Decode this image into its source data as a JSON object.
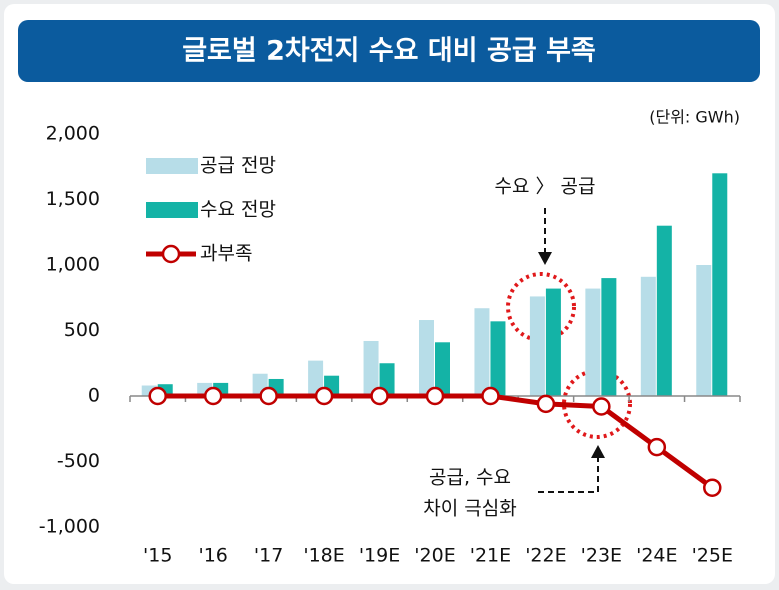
{
  "chart_data": {
    "type": "bar",
    "title": "글로벌 2차전지 수요 대비 공급 부족",
    "unit_label": "(단위: GWh)",
    "categories": [
      "'15",
      "'16",
      "'17",
      "'18E",
      "'19E",
      "'20E",
      "'21E",
      "'22E",
      "'23E",
      "'24E",
      "'25E"
    ],
    "series": [
      {
        "name": "공급 전망",
        "color": "#b7dde8",
        "type": "bar",
        "values": [
          80,
          100,
          170,
          270,
          420,
          580,
          670,
          760,
          820,
          910,
          1000
        ]
      },
      {
        "name": "수요 전망",
        "color": "#14b3a6",
        "type": "bar",
        "values": [
          90,
          100,
          130,
          155,
          250,
          410,
          570,
          820,
          900,
          1300,
          1700
        ]
      },
      {
        "name": "과부족",
        "color": "#c00000",
        "type": "line",
        "values": [
          0,
          0,
          0,
          0,
          0,
          0,
          0,
          -60,
          -80,
          -390,
          -700
        ]
      }
    ],
    "ylim": [
      -1000,
      2000
    ],
    "yticks": [
      {
        "value": -1000,
        "label": "-1,000"
      },
      -500,
      0,
      500,
      {
        "value": 1000,
        "label": "1,000"
      },
      {
        "value": 1500,
        "label": "1,500"
      },
      {
        "value": 2000,
        "label": "2,000"
      }
    ],
    "annotations": [
      {
        "lines": [
          "수요 〉 공급"
        ]
      },
      {
        "lines": [
          "공급, 수요",
          "차이 극심화"
        ]
      }
    ]
  }
}
